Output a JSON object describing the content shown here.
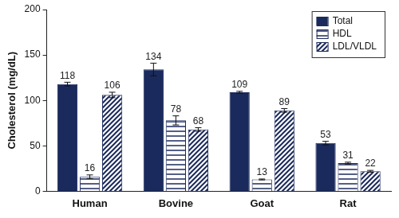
{
  "chart_data": {
    "type": "bar",
    "y_label": "Cholesterol (mg/dL)",
    "categories": [
      "Human",
      "Bovine",
      "Goat",
      "Rat"
    ],
    "series": [
      {
        "name": "Total",
        "color": "#1b2a5c",
        "values": [
          118,
          134,
          109,
          53
        ],
        "errors": [
          2,
          7,
          1,
          2
        ]
      },
      {
        "name": "HDL",
        "color": "#1b2a5c",
        "values": [
          16,
          78,
          13,
          31
        ],
        "errors": [
          2,
          5,
          0.5,
          1
        ]
      },
      {
        "name": "LDL/VLDL",
        "color": "#1b2a5c",
        "values": [
          106,
          68,
          89,
          22
        ],
        "errors": [
          3,
          2,
          2,
          1
        ]
      }
    ],
    "ylim": [
      0,
      200
    ],
    "yticks": [
      0,
      50,
      100,
      150,
      200
    ],
    "grid": false,
    "legend": "upper right",
    "data_labels": true
  }
}
